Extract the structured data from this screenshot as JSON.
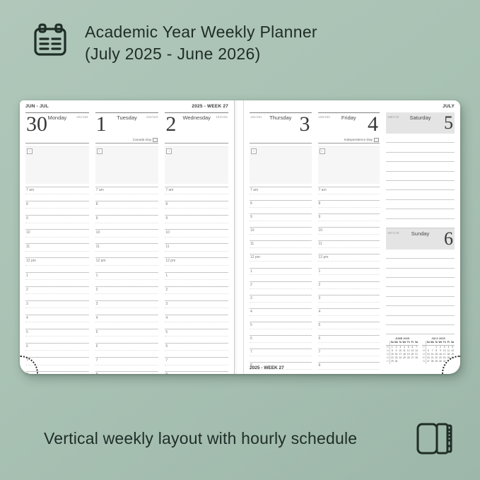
{
  "header": {
    "title_line1": "Academic Year Weekly Planner",
    "title_line2": "(July 2025 - June 2026)",
    "icon": "calendar-icon"
  },
  "footer": {
    "caption": "Vertical weekly layout with hourly schedule",
    "icon": "open-planner-icon"
  },
  "colors": {
    "background": "#a9c2b4",
    "ink": "#1f2d27",
    "page": "#ffffff",
    "weekend_block": "#e4e4e4",
    "rule_line": "#c6c6c6"
  },
  "planner": {
    "notes_icon": "i",
    "hours": [
      "7 am",
      "8",
      "9",
      "10",
      "11",
      "12 pm",
      "1",
      "2",
      "3",
      "4",
      "5",
      "6",
      "7",
      "8"
    ],
    "left_page": {
      "month_label": "JUN - JUL",
      "week_label": "2025 - WEEK 27",
      "days": [
        {
          "number": "30",
          "name": "Monday",
          "day_of_year": "181/184",
          "holiday": ""
        },
        {
          "number": "1",
          "name": "Tuesday",
          "day_of_year": "182/183",
          "holiday": "Canada Day"
        },
        {
          "number": "2",
          "name": "Wednesday",
          "day_of_year": "183/182",
          "holiday": ""
        }
      ]
    },
    "right_page": {
      "month_label": "JULY",
      "bottom_week_label": "2025 - WEEK 27",
      "days": [
        {
          "number": "3",
          "name": "Thursday",
          "day_of_year": "184/181",
          "holiday": ""
        },
        {
          "number": "4",
          "name": "Friday",
          "day_of_year": "185/180",
          "holiday": "Independence Day"
        }
      ],
      "weekend": [
        {
          "number": "5",
          "name": "Saturday",
          "day_of_year": "186/179"
        },
        {
          "number": "6",
          "name": "Sunday",
          "day_of_year": "187/178"
        }
      ],
      "mini_calendars": [
        {
          "title": "JUNE 2025",
          "week_header": "Wk",
          "day_headers": [
            "Su",
            "Mo",
            "Tu",
            "We",
            "Th",
            "Fr",
            "Sa"
          ],
          "rows": [
            {
              "week": "23",
              "days": [
                "1",
                "2",
                "3",
                "4",
                "5",
                "6",
                "7"
              ]
            },
            {
              "week": "24",
              "days": [
                "8",
                "9",
                "10",
                "11",
                "12",
                "13",
                "14"
              ]
            },
            {
              "week": "25",
              "days": [
                "15",
                "16",
                "17",
                "18",
                "19",
                "20",
                "21"
              ]
            },
            {
              "week": "26",
              "days": [
                "22",
                "23",
                "24",
                "25",
                "26",
                "27",
                "28"
              ]
            },
            {
              "week": "27",
              "days": [
                "29",
                "30",
                "",
                "",
                "",
                "",
                ""
              ]
            }
          ]
        },
        {
          "title": "JULY 2025",
          "week_header": "Wk",
          "day_headers": [
            "Su",
            "Mo",
            "Tu",
            "We",
            "Th",
            "Fr",
            "Sa"
          ],
          "rows": [
            {
              "week": "27",
              "days": [
                "",
                "",
                "1",
                "2",
                "3",
                "4",
                "5"
              ]
            },
            {
              "week": "28",
              "days": [
                "6",
                "7",
                "8",
                "9",
                "10",
                "11",
                "12"
              ]
            },
            {
              "week": "29",
              "days": [
                "13",
                "14",
                "15",
                "16",
                "17",
                "18",
                "19"
              ]
            },
            {
              "week": "30",
              "days": [
                "20",
                "21",
                "22",
                "23",
                "24",
                "25",
                "26"
              ]
            },
            {
              "week": "31",
              "days": [
                "27",
                "28",
                "29",
                "30",
                "31",
                "",
                ""
              ]
            }
          ]
        }
      ]
    }
  }
}
